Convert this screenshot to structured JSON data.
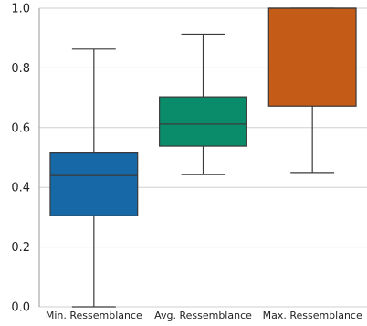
{
  "chart_data": {
    "type": "box",
    "title": "",
    "xlabel": "",
    "ylabel": "",
    "ylim": [
      0.0,
      1.0
    ],
    "yticks": [
      0.0,
      0.2,
      0.4,
      0.6,
      0.8,
      1.0
    ],
    "ytick_labels": [
      "0.0",
      "0.2",
      "0.4",
      "0.6",
      "0.8",
      "1.0"
    ],
    "grid": "horizontal",
    "categories": [
      "Min. Ressemblance",
      "Avg. Ressemblance",
      "Max. Ressemblance"
    ],
    "boxes": [
      {
        "category": "Min. Ressemblance",
        "whisker_low": 0.0,
        "q1": 0.305,
        "median": 0.44,
        "q3": 0.515,
        "whisker_high": 0.863,
        "color": "#1668a6"
      },
      {
        "category": "Avg. Ressemblance",
        "whisker_low": 0.443,
        "q1": 0.538,
        "median": 0.612,
        "q3": 0.703,
        "whisker_high": 0.913,
        "color": "#0a8c6a"
      },
      {
        "category": "Max. Ressemblance",
        "whisker_low": 0.45,
        "q1": 0.672,
        "median": 1.0,
        "q3": 1.0,
        "whisker_high": 1.0,
        "color": "#c45c17"
      }
    ]
  }
}
